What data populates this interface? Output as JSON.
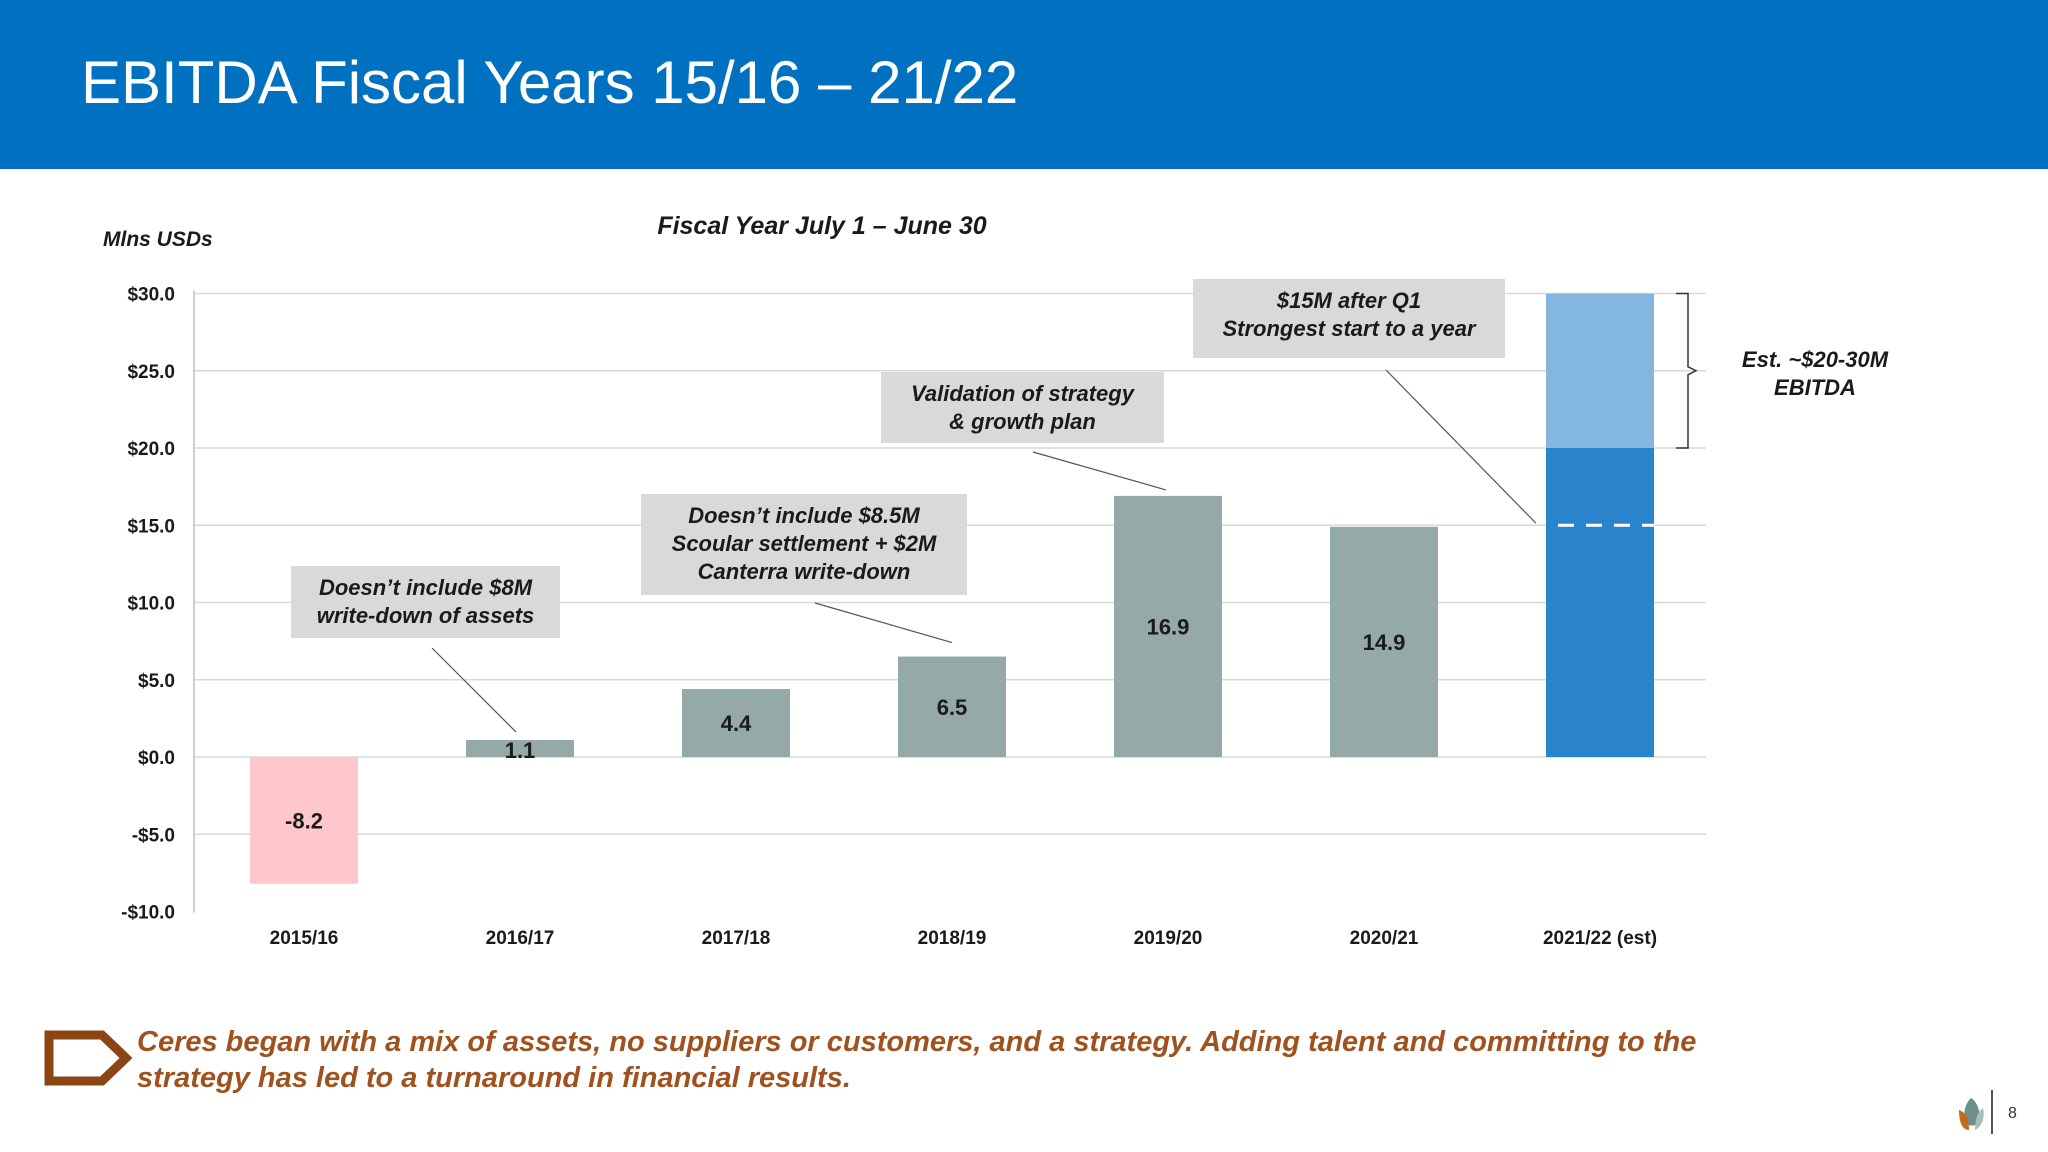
{
  "header": {
    "title": "EBITDA Fiscal Years 15/16 – 21/22",
    "background": "#0070C0"
  },
  "chart_data": {
    "type": "bar",
    "title": "Fiscal Year July 1 – June 30",
    "ylabel": "Mlns USDs",
    "xlabel": "",
    "ylim": [
      -10,
      30
    ],
    "yticks": [
      30,
      25,
      20,
      15,
      10,
      5,
      0,
      -5,
      -10
    ],
    "ytick_labels": [
      "$30.0",
      "$25.0",
      "$20.0",
      "$15.0",
      "$10.0",
      "$5.0",
      "$0.0",
      "-$5.0",
      "-$10.0"
    ],
    "grid": true,
    "categories": [
      "2015/16",
      "2016/17",
      "2017/18",
      "2018/19",
      "2019/20",
      "2020/21",
      "2021/22 (est)"
    ],
    "values": [
      -8.2,
      1.1,
      4.4,
      6.5,
      16.9,
      14.9,
      null
    ],
    "value_labels": [
      "-8.2",
      "1.1",
      "4.4",
      "6.5",
      "16.9",
      "14.9",
      ""
    ],
    "bar_colors": [
      "#FFC7CB",
      "#94A9A8",
      "#94A9A8",
      "#94A9A8",
      "#94A9A8",
      "#94A9A8",
      "#2A84CC"
    ],
    "estimate": {
      "category": "2021/22 (est)",
      "low": 20,
      "high": 30,
      "q1_marker": 15,
      "low_color": "#2A84CC",
      "range_color": "#83B7E0"
    },
    "annotations": [
      {
        "lines": [
          "Doesn’t include $8M",
          "write-down of assets"
        ],
        "target": "2016/17"
      },
      {
        "lines": [
          "Doesn’t include $8.5M",
          "Scoular settlement + $2M",
          "Canterra write-down"
        ],
        "target": "2018/19"
      },
      {
        "lines": [
          "Validation of strategy",
          "& growth plan"
        ],
        "target": "2019/20"
      },
      {
        "lines": [
          "$15M after Q1",
          "Strongest start to a year"
        ],
        "target": "2021/22 (est)"
      }
    ],
    "range_label": [
      "Est. ~$20-30M",
      "EBITDA"
    ]
  },
  "footer": {
    "message": "Ceres began with a mix of assets, no suppliers or customers, and a strategy.  Adding talent and committing to the strategy has led to a turnaround in financial results.",
    "message_color": "#A0521E",
    "page_number": "8",
    "logo_icon": "leaf-logo-icon",
    "bullet_icon": "arrow-outline-icon"
  }
}
